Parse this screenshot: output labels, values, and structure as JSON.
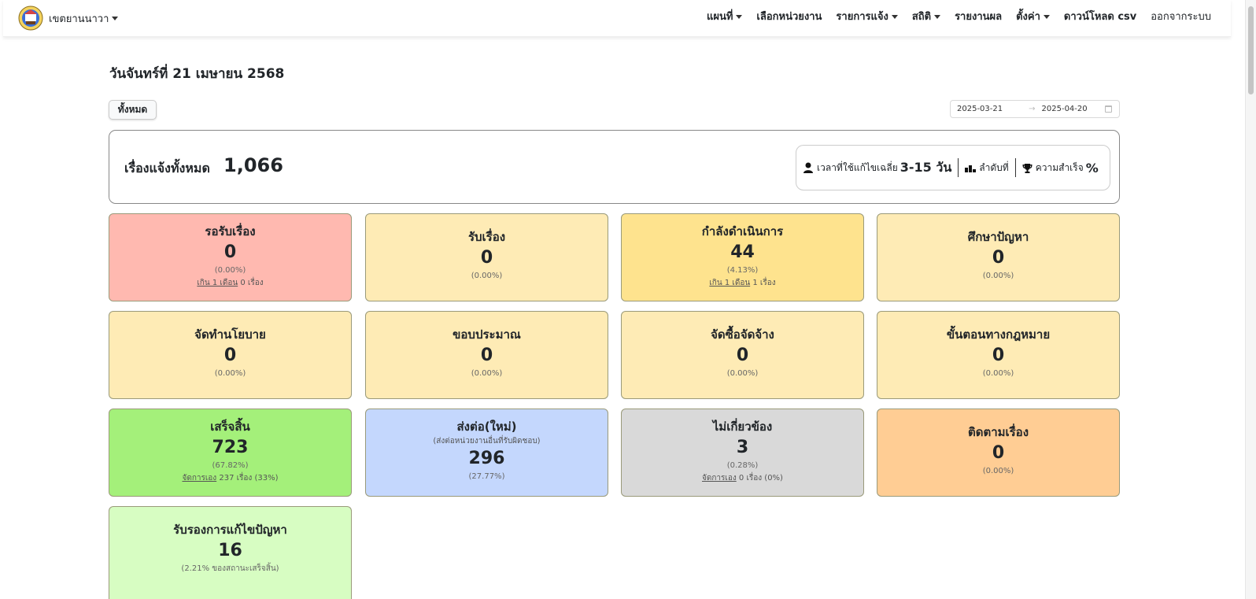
{
  "nav": {
    "brand": "เขตยานนาวา",
    "menu": [
      "แผนที่",
      "เลือกหน่วยงาน",
      "รายการแจ้ง",
      "สถิติ",
      "รายงานผล",
      "ตั้งค่า",
      "ดาวน์โหลด csv",
      "ออกจากระบบ"
    ]
  },
  "page": {
    "date_title": "วันจันทร์ที่ 21 เมษายน 2568",
    "btn_all": "ทั้งหมด",
    "range_start": "2025-03-21",
    "range_arrow": "→",
    "range_end": "2025-04-20"
  },
  "summary": {
    "label": "เรื่องแจ้งทั้งหมด",
    "value": "1,066",
    "avg_label": "เวลาที่ใช้แก้ไขเฉลี่ย",
    "avg_value": "3-15 วัน",
    "rank_label": "ลำดับที่",
    "success_label": "ความสำเร็จ",
    "success_value": "%"
  },
  "cards": {
    "waiting": {
      "title": "รอรับเรื่อง",
      "num": "0",
      "pct": "(0.00%)",
      "extra_link": "เกิน 1 เดือน",
      "extra_text": " 0 เรื่อง",
      "color": "#ffb9b0"
    },
    "received": {
      "title": "รับเรื่อง",
      "num": "0",
      "pct": "(0.00%)",
      "color": "#feebb5"
    },
    "inprogress": {
      "title": "กำลังดำเนินการ",
      "num": "44",
      "pct": "(4.13%)",
      "extra_link": "เกิน 1 เดือน",
      "extra_text": " 1 เรื่อง",
      "color": "#fee38e"
    },
    "study": {
      "title": "ศึกษาปัญหา",
      "num": "0",
      "pct": "(0.00%)",
      "color": "#feebb5"
    },
    "policy": {
      "title": "จัดทำนโยบาย",
      "num": "0",
      "pct": "(0.00%)",
      "color": "#feebb5"
    },
    "budget": {
      "title": "ขอบประมาณ",
      "num": "0",
      "pct": "(0.00%)",
      "color": "#feebb5"
    },
    "procure": {
      "title": "จัดซื้อจัดจ้าง",
      "num": "0",
      "pct": "(0.00%)",
      "color": "#feebb5"
    },
    "legal": {
      "title": "ขั้นตอนทางกฎหมาย",
      "num": "0",
      "pct": "(0.00%)",
      "color": "#feebb5"
    },
    "done": {
      "title": "เสร็จสิ้น",
      "num": "723",
      "pct": "(67.82%)",
      "extra_link": "จัดการเอง",
      "extra_text": " 237 เรื่อง (33%)",
      "color": "#a4f07a"
    },
    "forward": {
      "title": "ส่งต่อ(ใหม่)",
      "sub": "(ส่งต่อหน่วยงานอื่นที่รับผิดชอบ)",
      "num": "296",
      "pct": "(27.77%)",
      "color": "#c4d7fd"
    },
    "unrelated": {
      "title": "ไม่เกี่ยวข้อง",
      "num": "3",
      "pct": "(0.28%)",
      "extra_link": "จัดการเอง",
      "extra_text": " 0 เรื่อง (0%)",
      "color": "#d9d9d9"
    },
    "follow": {
      "title": "ติดตามเรื่อง",
      "num": "0",
      "pct": "(0.00%)",
      "color": "#ffcd94"
    },
    "certified": {
      "title": "รับรองการแก้ไขปัญหา",
      "num": "16",
      "pct": "(2.21% ของสถานะเสร็จสิ้น)",
      "color": "#d7fdc2"
    }
  }
}
